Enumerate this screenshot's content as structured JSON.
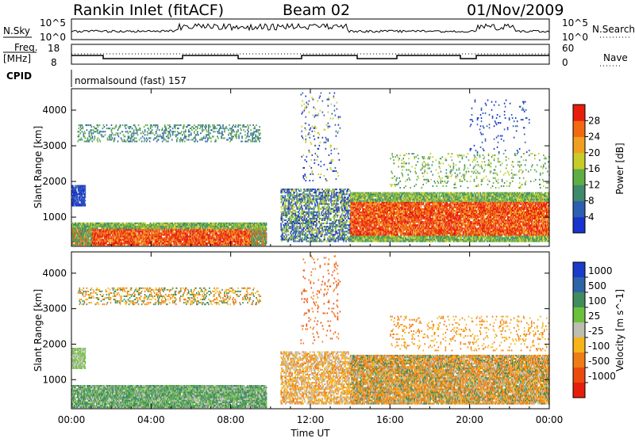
{
  "header": {
    "station": "Rankin Inlet (fitACF)",
    "beam": "Beam 02",
    "date": "01/Nov/2009"
  },
  "nsky_panel": {
    "left_label": "N.Sky",
    "right_label": "N.Search",
    "left_ticks": [
      "10^5",
      "10^0"
    ],
    "right_ticks": [
      "10^5",
      "10^0"
    ]
  },
  "freq_panel": {
    "left_label_top": "Freq.",
    "left_label_unit": "[MHz]",
    "right_label": "Nave",
    "left_ticks": [
      "18",
      "8"
    ],
    "right_ticks": [
      "60",
      "0"
    ],
    "cpid_label": "CPID",
    "cpid_value": "normalsound (fast) 157"
  },
  "chart_data": [
    {
      "type": "heatmap",
      "title": "Power",
      "ylabel": "Slant Range [km]",
      "ylim": [
        180,
        4600
      ],
      "yticks": [
        1000,
        2000,
        3000,
        4000
      ],
      "xlim": [
        0,
        24
      ],
      "colorbar": {
        "label": "Power [dB]",
        "range": [
          0,
          30
        ],
        "tick_labels": [
          "4",
          "8",
          "12",
          "16",
          "20",
          "24",
          "28"
        ],
        "colors": [
          "#1a33cc",
          "#2d5fb0",
          "#3e8a6a",
          "#5eae45",
          "#c8cc2a",
          "#f0a020",
          "#f26a10",
          "#e81e0c"
        ]
      }
    },
    {
      "type": "heatmap",
      "title": "Velocity",
      "ylabel": "Slant Range [km]",
      "ylim": [
        180,
        4600
      ],
      "yticks": [
        1000,
        2000,
        3000,
        4000
      ],
      "xlim": [
        0,
        24
      ],
      "xticks": [
        "00:00",
        "04:00",
        "08:00",
        "12:00",
        "16:00",
        "20:00",
        "00:00"
      ],
      "xlabel": "Time UT",
      "colorbar": {
        "label": "Velocity [m s^-1]",
        "tick_labels": [
          "1000",
          "500",
          "100",
          "25",
          "-25",
          "-100",
          "-500",
          "-1000"
        ],
        "colors": [
          "#1a3cc8",
          "#2e63a8",
          "#3f8c5c",
          "#6cc13c",
          "#bdbdb0",
          "#f6b418",
          "#ef7c14",
          "#ec4a0c",
          "#e81e0c"
        ]
      }
    }
  ]
}
